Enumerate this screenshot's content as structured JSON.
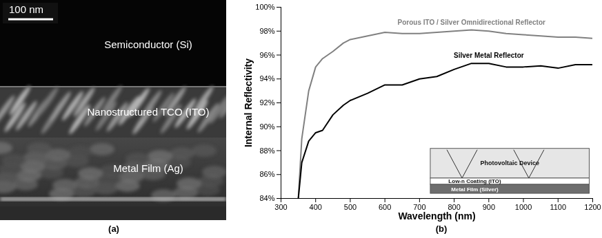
{
  "image_panel": {
    "label": "(a)",
    "scale_bar": "100 nm",
    "layers": [
      "Semiconductor (Si)",
      "Nanostructured TCO (ITO)",
      "Metal Film (Ag)"
    ]
  },
  "chart_data": {
    "type": "line",
    "panel_label": "(b)",
    "x_label": "Wavelength (nm)",
    "y_label": "Internal Reflectivity",
    "x": [
      350,
      360,
      380,
      400,
      420,
      450,
      480,
      500,
      550,
      600,
      650,
      700,
      750,
      800,
      850,
      900,
      950,
      1000,
      1050,
      1100,
      1150,
      1200
    ],
    "series": [
      {
        "name": "Porous ITO / Silver Omnidirectional Reflector",
        "color": "#808080",
        "values": [
          84,
          89,
          93,
          95,
          95.7,
          96.3,
          97,
          97.3,
          97.6,
          97.9,
          97.8,
          97.8,
          97.9,
          98,
          98.1,
          98,
          97.8,
          97.7,
          97.6,
          97.5,
          97.5,
          97.4
        ]
      },
      {
        "name": "Silver Metal Reflector",
        "color": "#000000",
        "values": [
          84,
          87,
          88.8,
          89.5,
          89.7,
          91,
          91.8,
          92.2,
          92.8,
          93.5,
          93.5,
          94,
          94.2,
          94.8,
          95.3,
          95.3,
          95,
          95,
          95.1,
          94.9,
          95.2,
          95.2
        ]
      }
    ],
    "xlim": [
      300,
      1200
    ],
    "xticks": [
      300,
      400,
      500,
      600,
      700,
      800,
      900,
      1000,
      1100,
      1200
    ],
    "ylim": [
      84,
      100
    ],
    "yticks": [
      {
        "value": 84,
        "label": "84%"
      },
      {
        "value": 86,
        "label": "86%"
      },
      {
        "value": 88,
        "label": "88%"
      },
      {
        "value": 90,
        "label": "90%"
      },
      {
        "value": 92,
        "label": "92%"
      },
      {
        "value": 94,
        "label": "94%"
      },
      {
        "value": 96,
        "label": "96%"
      },
      {
        "value": 98,
        "label": "98%"
      },
      {
        "value": 100,
        "label": "100%"
      }
    ],
    "grid": false,
    "inset": {
      "layers": [
        "Photovoltaic Device",
        "Low-n Coating (ITO)",
        "Metal Film (Silver)"
      ]
    }
  }
}
